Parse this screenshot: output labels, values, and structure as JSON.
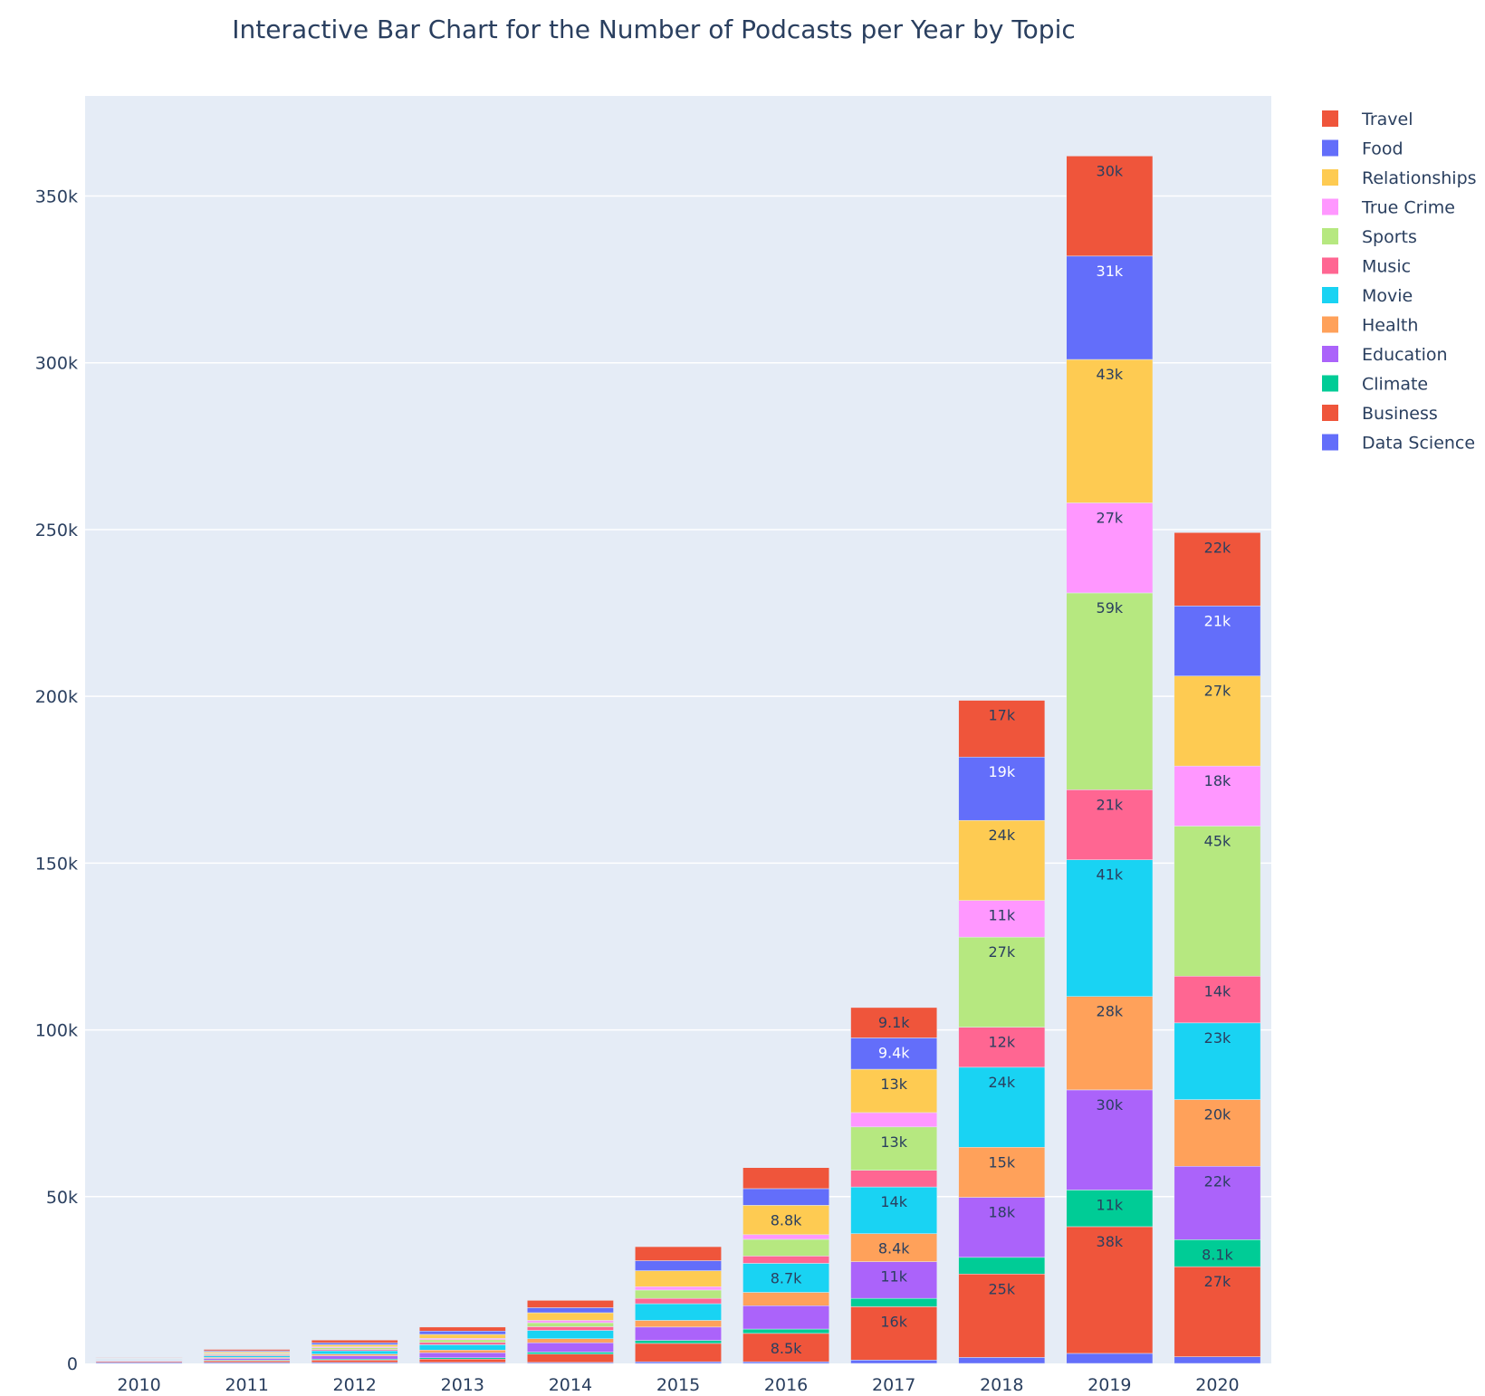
{
  "chart_data": {
    "type": "bar",
    "stacked": true,
    "title": "Interactive Bar Chart for the Number of Podcasts per Year by Topic",
    "xlabel": "",
    "ylabel": "",
    "categories": [
      "2010",
      "2011",
      "2012",
      "2013",
      "2014",
      "2015",
      "2016",
      "2017",
      "2018",
      "2019",
      "2020"
    ],
    "ylim": [
      0,
      380000
    ],
    "yticks": [
      0,
      50000,
      100000,
      150000,
      200000,
      250000,
      300000,
      350000
    ],
    "ytick_labels": [
      "0",
      "50k",
      "100k",
      "150k",
      "200k",
      "250k",
      "300k",
      "350k"
    ],
    "grid": true,
    "legend_position": "right",
    "plot_background": "#E5ECF6",
    "series": [
      {
        "name": "Data Science",
        "color": "#636EFA",
        "values": [
          300,
          300,
          300,
          300,
          300,
          500,
          500,
          1000,
          1800,
          3000,
          2000
        ],
        "labels": [
          "",
          "",
          "",
          "",
          "",
          "",
          "",
          "",
          "",
          "",
          ""
        ]
      },
      {
        "name": "Business",
        "color": "#EF553B",
        "values": [
          300,
          500,
          700,
          1000,
          2500,
          5500,
          8500,
          16000,
          25000,
          38000,
          27000
        ],
        "labels": [
          "",
          "",
          "",
          "",
          "",
          "",
          "8.5k",
          "16k",
          "25k",
          "38k",
          "27k"
        ]
      },
      {
        "name": "Climate",
        "color": "#00CC96",
        "values": [
          100,
          200,
          300,
          400,
          600,
          900,
          1300,
          2500,
          5000,
          11000,
          8100
        ],
        "labels": [
          "",
          "",
          "",
          "",
          "",
          "",
          "",
          "",
          "",
          "11k",
          "8.1k"
        ]
      },
      {
        "name": "Education",
        "color": "#AB63FA",
        "values": [
          200,
          500,
          1000,
          1500,
          2800,
          4000,
          7000,
          11000,
          18000,
          30000,
          22000
        ],
        "labels": [
          "",
          "",
          "",
          "",
          "",
          "",
          "",
          "11k",
          "18k",
          "30k",
          "22k"
        ]
      },
      {
        "name": "Health",
        "color": "#FFA15A",
        "values": [
          100,
          300,
          500,
          800,
          1200,
          2000,
          4000,
          8400,
          15000,
          28000,
          20000
        ],
        "labels": [
          "",
          "",
          "",
          "",
          "",
          "",
          "",
          "8.4k",
          "15k",
          "28k",
          "20k"
        ]
      },
      {
        "name": "Movie",
        "color": "#19D3F3",
        "values": [
          200,
          500,
          1000,
          1600,
          2500,
          5000,
          8700,
          14000,
          24000,
          41000,
          23000
        ],
        "labels": [
          "",
          "",
          "",
          "",
          "",
          "",
          "8.7k",
          "14k",
          "24k",
          "41k",
          "23k"
        ]
      },
      {
        "name": "Music",
        "color": "#FF6692",
        "values": [
          100,
          300,
          400,
          700,
          1100,
          1600,
          2200,
          5000,
          12000,
          21000,
          14000
        ],
        "labels": [
          "",
          "",
          "",
          "",
          "",
          "",
          "",
          "",
          "12k",
          "21k",
          "14k"
        ]
      },
      {
        "name": "Sports",
        "color": "#B6E880",
        "values": [
          100,
          300,
          500,
          800,
          1200,
          2500,
          5000,
          13000,
          27000,
          59000,
          45000
        ],
        "labels": [
          "",
          "",
          "",
          "",
          "",
          "",
          "",
          "13k",
          "27k",
          "59k",
          "45k"
        ]
      },
      {
        "name": "True Crime",
        "color": "#FF97FF",
        "values": [
          50,
          200,
          300,
          400,
          700,
          1000,
          1400,
          4300,
          11000,
          27000,
          18000
        ],
        "labels": [
          "",
          "",
          "",
          "",
          "",
          "",
          "",
          "",
          "11k",
          "27k",
          "18k"
        ]
      },
      {
        "name": "Relationships",
        "color": "#FECB52",
        "values": [
          100,
          400,
          600,
          1200,
          2300,
          4800,
          8800,
          13000,
          24000,
          43000,
          27000
        ],
        "labels": [
          "",
          "",
          "",
          "",
          "",
          "",
          "8.8k",
          "13k",
          "24k",
          "43k",
          "27k"
        ]
      },
      {
        "name": "Food",
        "color": "#636EFA",
        "values": [
          100,
          300,
          600,
          1000,
          1500,
          3000,
          5000,
          9400,
          19000,
          31000,
          21000
        ],
        "labels": [
          "",
          "",
          "",
          "",
          "",
          "",
          "",
          "9.4k",
          "19k",
          "31k",
          "21k"
        ]
      },
      {
        "name": "Travel",
        "color": "#EF553B",
        "values": [
          150,
          400,
          800,
          1200,
          2200,
          4200,
          6300,
          9100,
          17000,
          30000,
          22000
        ],
        "labels": [
          "",
          "",
          "",
          "",
          "",
          "",
          "",
          "9.1k",
          "17k",
          "30k",
          "22k"
        ]
      }
    ],
    "legend_order": [
      "Travel",
      "Food",
      "Relationships",
      "True Crime",
      "Sports",
      "Music",
      "Movie",
      "Health",
      "Education",
      "Climate",
      "Business",
      "Data Science"
    ]
  }
}
